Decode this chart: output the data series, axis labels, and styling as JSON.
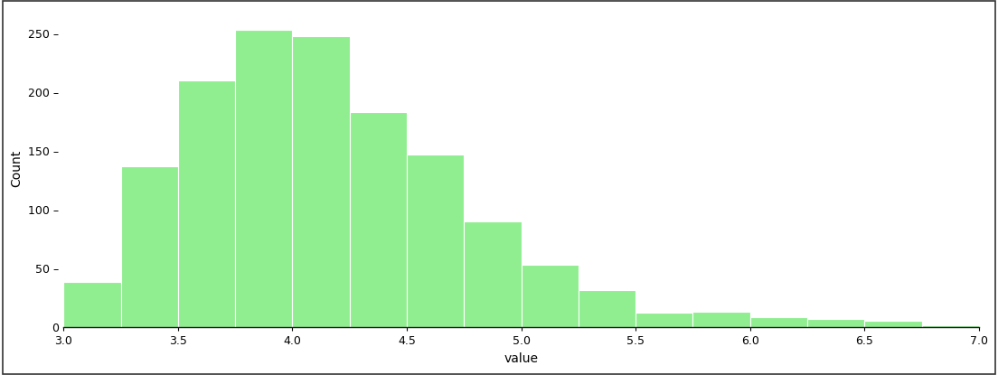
{
  "bin_edges": [
    3.0,
    3.25,
    3.5,
    3.75,
    4.0,
    4.25,
    4.5,
    4.75,
    5.0,
    5.25,
    5.5,
    5.75,
    6.0,
    6.25,
    6.5,
    6.75,
    7.0
  ],
  "counts": [
    38,
    137,
    210,
    253,
    248,
    183,
    147,
    90,
    53,
    31,
    12,
    13,
    8,
    7,
    5,
    1
  ],
  "bar_color": "#90EE90",
  "bar_edgecolor": "white",
  "background_color": "white",
  "xlabel": "value",
  "ylabel": "Count",
  "xlim": [
    3.0,
    7.0
  ],
  "ylim": [
    0,
    270
  ],
  "yticks": [
    0,
    50,
    100,
    150,
    200,
    250
  ],
  "xticks": [
    3.0,
    3.5,
    4.0,
    4.5,
    5.0,
    5.5,
    6.0,
    6.5,
    7.0
  ],
  "figure_size": [
    11.04,
    4.15
  ],
  "dpi": 100,
  "border_color": "#333333",
  "spine_bottom_color": "#1a1a1a"
}
